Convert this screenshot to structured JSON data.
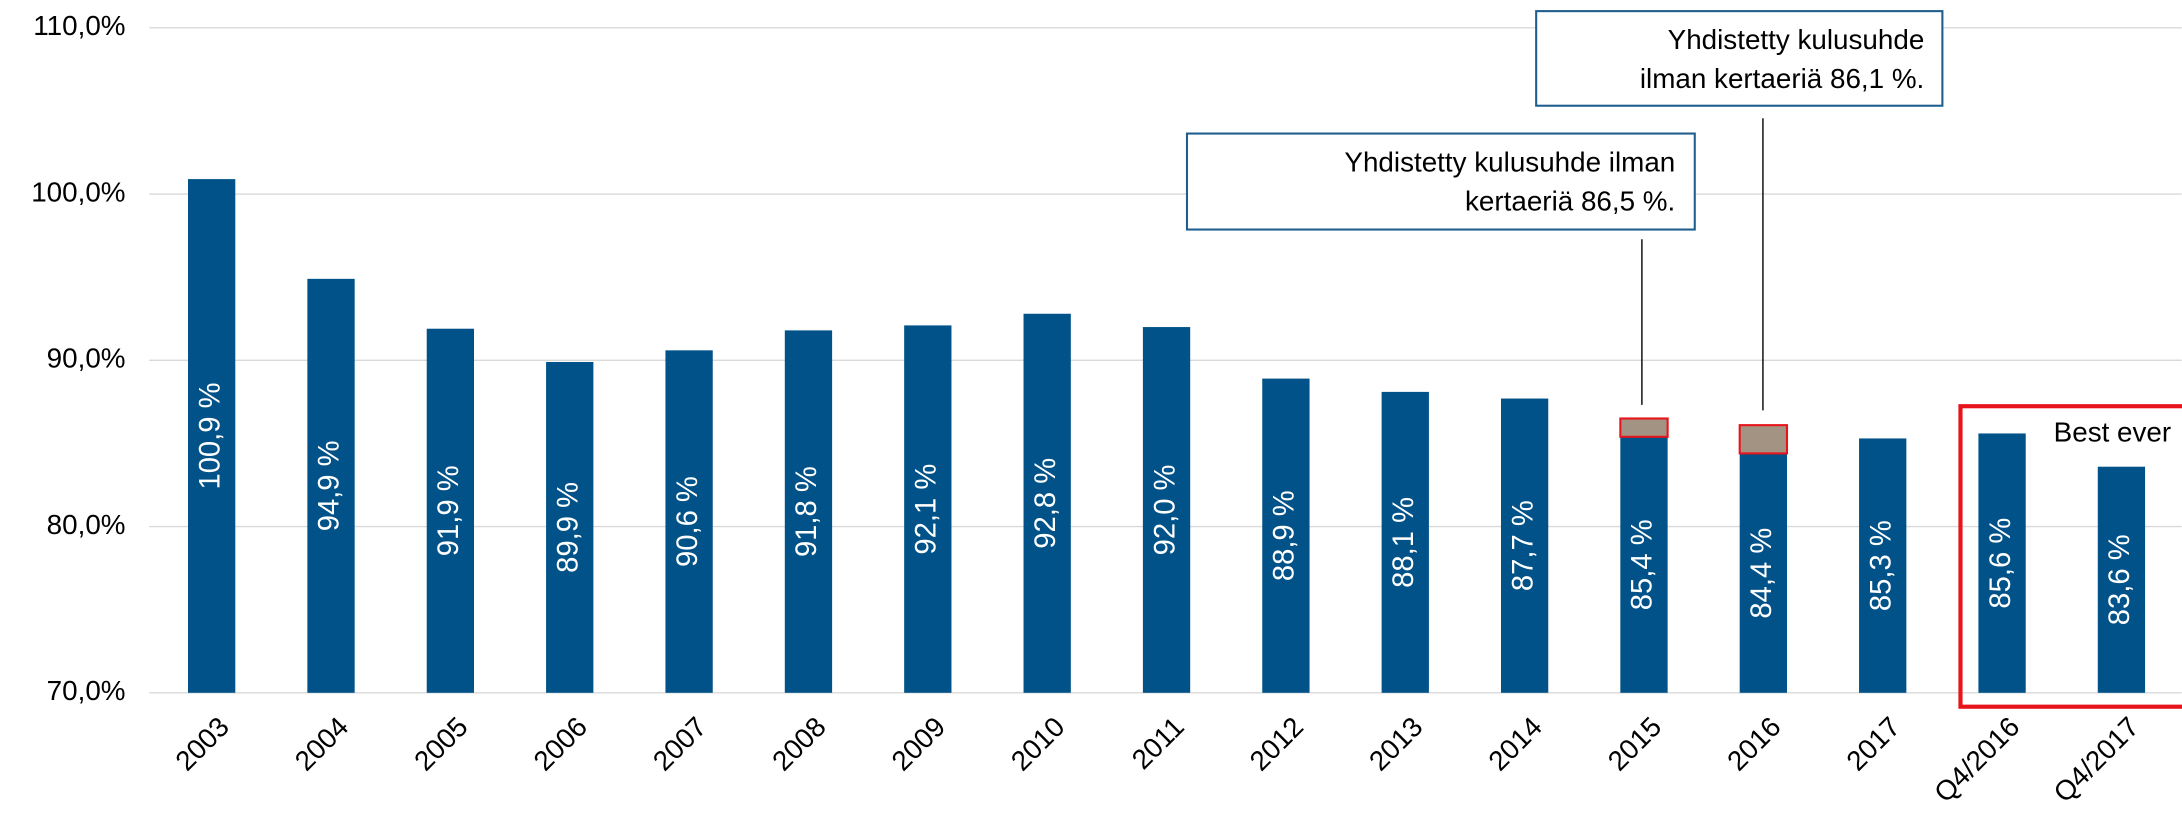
{
  "chart_data": {
    "type": "bar",
    "categories": [
      "2003",
      "2004",
      "2005",
      "2006",
      "2007",
      "2008",
      "2009",
      "2010",
      "2011",
      "2012",
      "2013",
      "2014",
      "2015",
      "2016",
      "2017",
      "Q4/2016",
      "Q4/2017"
    ],
    "values": [
      100.9,
      94.9,
      91.9,
      89.9,
      90.6,
      91.8,
      92.1,
      92.8,
      92.0,
      88.9,
      88.1,
      87.7,
      85.4,
      84.4,
      85.3,
      85.6,
      83.6
    ],
    "value_labels": [
      "100,9 %",
      "94,9 %",
      "91,9 %",
      "89,9 %",
      "90,6 %",
      "91,8 %",
      "92,1 %",
      "92,8 %",
      "92,0 %",
      "88,9 %",
      "88,1 %",
      "87,7 %",
      "85,4 %",
      "84,4 %",
      "85,3 %",
      "85,6 %",
      "83,6 %"
    ],
    "color": "#005288",
    "one_off_values": [
      null,
      null,
      null,
      null,
      null,
      null,
      null,
      null,
      null,
      null,
      null,
      null,
      1.1,
      1.7,
      null,
      null,
      null
    ],
    "one_off_color": "#a39382",
    "ylim": [
      70,
      110
    ],
    "yticks": [
      {
        "value": 70,
        "label": "70,0%"
      },
      {
        "value": 80,
        "label": "80,0%"
      },
      {
        "value": 90,
        "label": "90,0%"
      },
      {
        "value": 100,
        "label": "100,0%"
      },
      {
        "value": 110,
        "label": "110,0%"
      }
    ],
    "grid": true,
    "annotations": [
      {
        "lines": [
          "Yhdistetty kulusuhde ilman",
          "kertaeriä 86,5 %."
        ]
      },
      {
        "lines": [
          "Yhdistetty kulusuhde",
          "ilman kertaeriä 86,1 %."
        ]
      },
      {
        "text": "Best ever"
      }
    ]
  }
}
